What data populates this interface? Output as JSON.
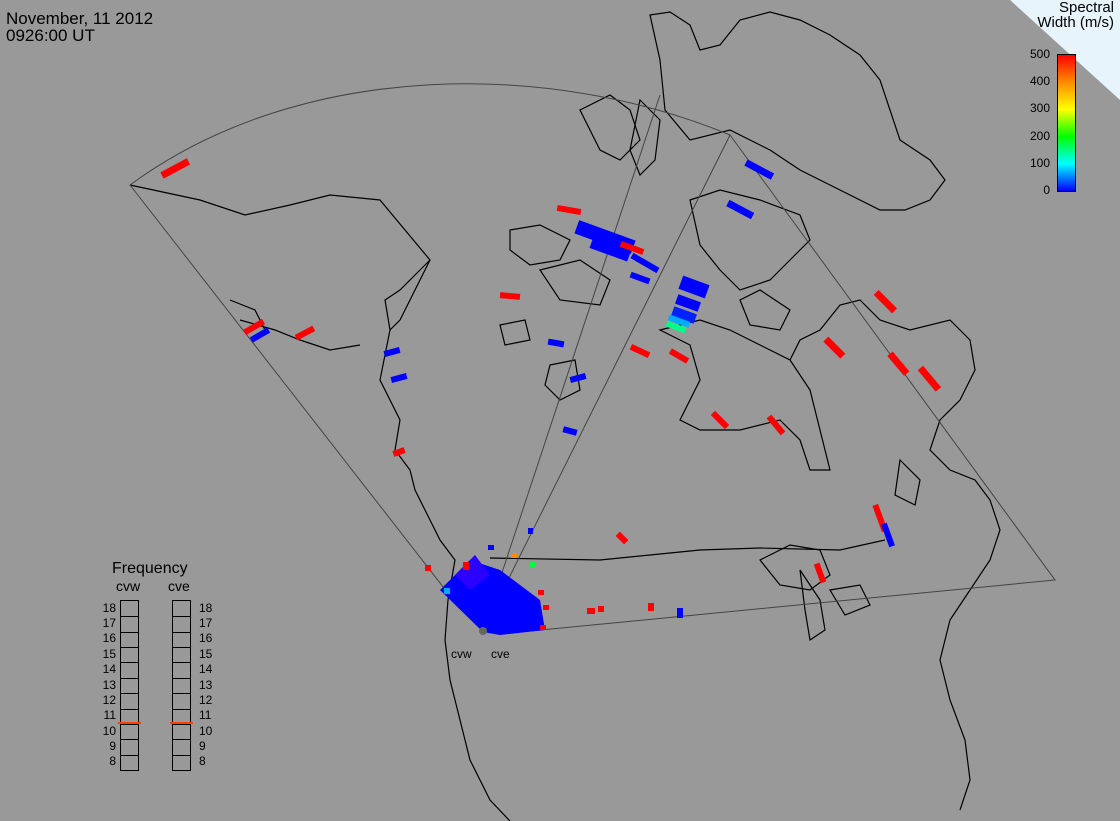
{
  "header": {
    "date": "November, 11 2012",
    "time": "0926:00 UT"
  },
  "colorbar": {
    "title_line1": "Spectral",
    "title_line2": "Width (m/s)",
    "ticks": [
      "500",
      "400",
      "300",
      "200",
      "100",
      "0"
    ],
    "stops": [
      "#ff0000",
      "#ff8c00",
      "#ffff00",
      "#00ff00",
      "#00ffff",
      "#0000ff"
    ],
    "min": 0,
    "max": 500
  },
  "frequency_panel": {
    "title": "Frequency",
    "radars": [
      "cvw",
      "cve"
    ],
    "levels": [
      "18",
      "17",
      "16",
      "15",
      "14",
      "13",
      "12",
      "11",
      "10",
      "9",
      "8"
    ],
    "cvw_value": 10.6,
    "cve_value": 10.6,
    "marker_color": "#ff4000"
  },
  "sites": [
    "cvw",
    "cve"
  ],
  "colors": {
    "background": "#999999",
    "coastline": "#000000",
    "fov": "#444444",
    "high_width": "#ff0000",
    "low_width": "#0000ff"
  }
}
